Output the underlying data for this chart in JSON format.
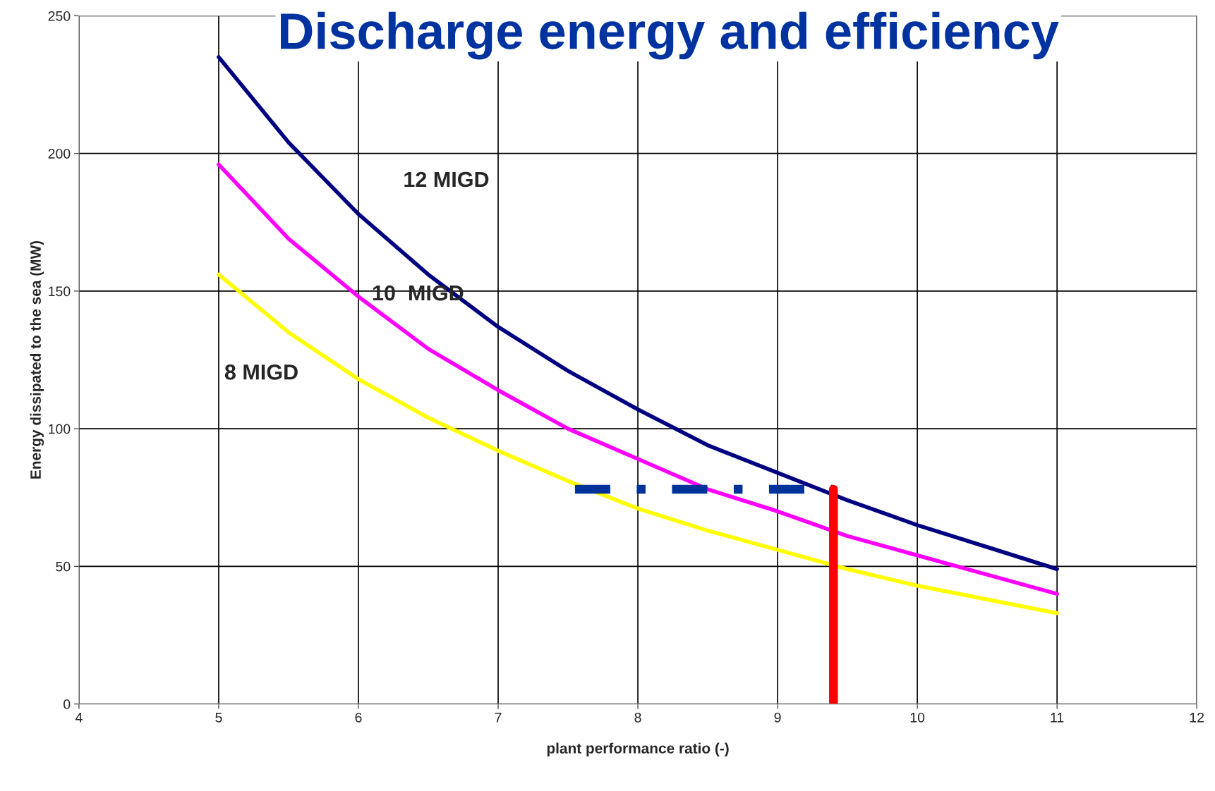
{
  "chart_data": {
    "type": "line",
    "title": "Discharge energy and efficiency",
    "xlabel": "plant performance ratio (-)",
    "ylabel": "Energy dissipated to the sea (MW)",
    "xlim": [
      4,
      12
    ],
    "xticks": [
      4,
      5,
      6,
      7,
      8,
      9,
      10,
      11,
      12
    ],
    "ylim": [
      0,
      250
    ],
    "yticks": [
      0,
      50,
      100,
      150,
      200,
      250
    ],
    "grid": true,
    "marker": "none",
    "line_style": "solid",
    "series": [
      {
        "color": "#000080",
        "x": [
          5,
          5.5,
          6,
          6.5,
          7,
          7.5,
          8,
          8.5,
          9,
          9.5,
          10,
          10.5,
          11
        ],
        "values": [
          235,
          204,
          178,
          156,
          137,
          121,
          107,
          94,
          84,
          74,
          65,
          57,
          49
        ]
      },
      {
        "color": "#ff00ff",
        "x": [
          5,
          5.5,
          6,
          6.5,
          7,
          7.5,
          8,
          8.5,
          9,
          9.5,
          10,
          10.5,
          11
        ],
        "values": [
          196,
          169,
          148,
          129,
          114,
          100,
          89,
          78,
          70,
          61,
          54,
          47,
          40
        ]
      },
      {
        "color": "#ffff00",
        "x": [
          5,
          5.5,
          6,
          6.5,
          7,
          7.5,
          8,
          8.5,
          9,
          9.5,
          10,
          10.5,
          11
        ],
        "values": [
          156,
          135,
          118,
          104,
          92,
          81,
          71,
          63,
          56,
          49,
          43,
          38,
          33
        ]
      },
      {
        "color": "#003399",
        "x": [
          7.55,
          9.4
        ],
        "values": [
          78,
          78
        ],
        "line_style": "dashed"
      },
      {
        "color": "#ff0000",
        "x": [
          9.4,
          9.4
        ],
        "values": [
          0,
          78
        ]
      }
    ],
    "annotations": [
      "12 MIGD",
      "10  MIGD",
      "8 MIGD"
    ]
  }
}
